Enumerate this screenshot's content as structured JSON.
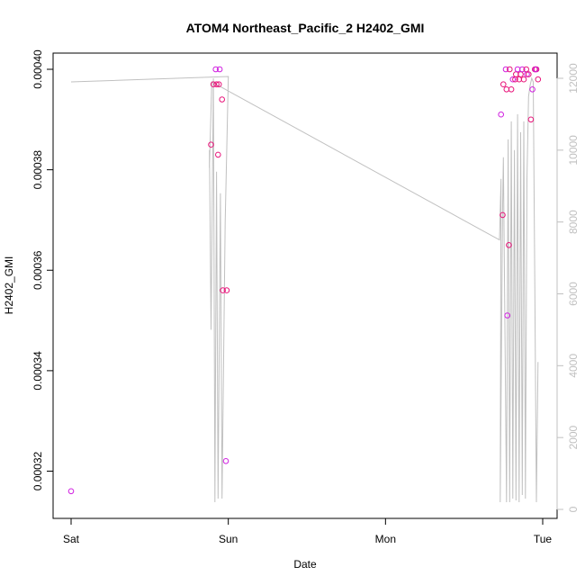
{
  "chart_data": {
    "type": "scatter",
    "title": "ATOM4 Northeast_Pacific_2 H2402_GMI",
    "xlabel": "Date",
    "ylabel": "H2402_GMI",
    "x_ticks": [
      "Sat",
      "Sun",
      "Mon",
      "Tue"
    ],
    "y_ticks": [
      "0.00032",
      "0.00034",
      "0.00036",
      "0.00038",
      "0.00040"
    ],
    "ylim": [
      0.000314,
      0.0004
    ],
    "y2_ticks": [
      "0",
      "2000",
      "4000",
      "6000",
      "8000",
      "10000",
      "12000"
    ],
    "y2lim": [
      0,
      12000
    ],
    "xlim_days": [
      0,
      3
    ],
    "colors": {
      "points": "#e8157a",
      "points_alt": "#d020e0",
      "line": "#c0c0c0",
      "right_axis": "#c0c0c0"
    },
    "series": [
      {
        "type": "scatter",
        "x_days": [
          0.0,
          0.89,
          0.905,
          0.92,
          0.935,
          0.925,
          0.945,
          0.96,
          0.94,
          0.985,
          0.965,
          0.99,
          2.735,
          2.745,
          2.75,
          2.765,
          2.77,
          2.785,
          2.775,
          2.8,
          2.79,
          2.81,
          2.825,
          2.83,
          2.84,
          2.85,
          2.86,
          2.87,
          2.88,
          2.895,
          2.9,
          2.91,
          2.925,
          2.935,
          2.95,
          2.96,
          2.955,
          2.97
        ],
        "y": [
          0.000316,
          0.000385,
          0.000397,
          0.0004,
          0.000383,
          0.000397,
          0.0004,
          0.000394,
          0.000397,
          0.000322,
          0.000356,
          0.000356,
          0.000391,
          0.000371,
          0.000397,
          0.0004,
          0.000396,
          0.000365,
          0.000351,
          0.000396,
          0.0004,
          0.000398,
          0.000398,
          0.000399,
          0.0004,
          0.000398,
          0.000399,
          0.0004,
          0.000398,
          0.0004,
          0.000399,
          0.000399,
          0.00039,
          0.000396,
          0.0004,
          0.0004,
          0.0004,
          0.000398
        ]
      },
      {
        "type": "line",
        "x_days": [
          0.0,
          1.0,
          0.98,
          0.96,
          0.95,
          0.935,
          0.925,
          0.915,
          0.905,
          0.89,
          0.88,
          0.88,
          0.895,
          2.725,
          2.735,
          2.73,
          2.745,
          2.75,
          2.77,
          2.78,
          2.79,
          2.8,
          2.81,
          2.82,
          2.83,
          2.84,
          2.85,
          2.86,
          2.87,
          2.88,
          2.89,
          2.9,
          2.91,
          2.92,
          2.93,
          2.94,
          2.95,
          2.96,
          2.97
        ],
        "y2": [
          11900,
          12050,
          8000,
          300,
          8800,
          300,
          9400,
          200,
          12000,
          5000,
          10000,
          9500,
          11900,
          7500,
          9200,
          200,
          8500,
          9800,
          200,
          10300,
          200,
          10800,
          300,
          10000,
          250,
          11000,
          200,
          10500,
          400,
          10800,
          300,
          9200,
          11500,
          11800,
          12000,
          11900,
          6000,
          200,
          4100
        ]
      }
    ]
  }
}
